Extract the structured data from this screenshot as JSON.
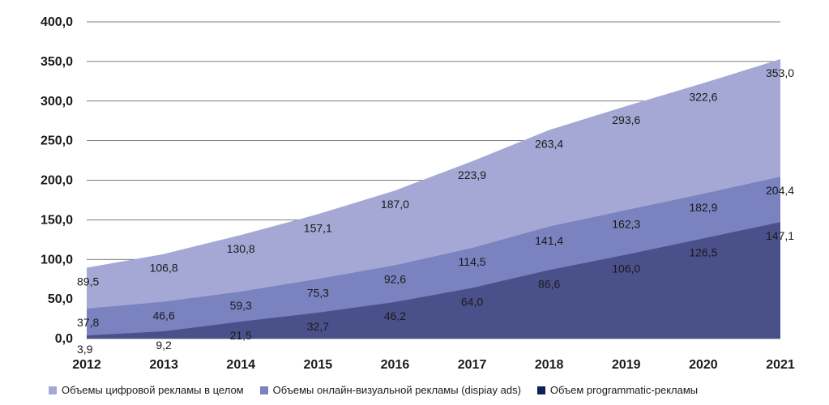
{
  "chart_data": {
    "type": "area",
    "categories": [
      "2012",
      "2013",
      "2014",
      "2015",
      "2016",
      "2017",
      "2018",
      "2019",
      "2020",
      "2021"
    ],
    "series": [
      {
        "name": "Объемы цифровой рекламы в целом",
        "color": "#a5a8d5",
        "values": [
          89.5,
          106.8,
          130.8,
          157.1,
          187.0,
          223.9,
          263.4,
          293.6,
          322.6,
          353.0
        ],
        "labels": [
          "89,5",
          "106,8",
          "130,8",
          "157,1",
          "187,0",
          "223,9",
          "263,4",
          "293,6",
          "322,6",
          "353,0"
        ]
      },
      {
        "name": "Объемы онлайн-визуальной рекламы (dispiay ads)",
        "color": "#7a82c0",
        "values": [
          37.8,
          46.6,
          59.3,
          75.3,
          92.6,
          114.5,
          141.4,
          162.3,
          182.9,
          204.4
        ],
        "labels": [
          "37,8",
          "46,6",
          "59,3",
          "75,3",
          "92,6",
          "114,5",
          "141,4",
          "162,3",
          "182,9",
          "204,4"
        ]
      },
      {
        "name": "Объем programmatic-рекламы",
        "color": "#4a518a",
        "values": [
          3.9,
          9.2,
          21.5,
          32.7,
          46.2,
          64.0,
          86.6,
          106.0,
          126.5,
          147.1
        ],
        "labels": [
          "3,9",
          "9,2",
          "21,5",
          "32,7",
          "46,2",
          "64,0",
          "86,6",
          "106,0",
          "126,5",
          "147,1"
        ]
      }
    ],
    "yticks": [
      0,
      50,
      100,
      150,
      200,
      250,
      300,
      350,
      400
    ],
    "ytick_labels": [
      "0,0",
      "50,0",
      "100,0",
      "150,0",
      "200,0",
      "250,0",
      "300,0",
      "350,0",
      "400,0"
    ],
    "ylim": [
      0,
      400
    ],
    "grid": "horizontal",
    "legend_position": "bottom",
    "legend_swatch_colors": [
      "#a5a8d5",
      "#7a82c0",
      "#0f1f5c"
    ]
  }
}
